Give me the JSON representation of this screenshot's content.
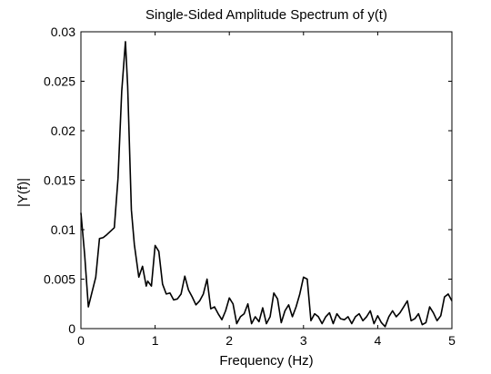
{
  "chart_data": {
    "type": "line",
    "title": "Single-Sided Amplitude Spectrum of y(t)",
    "xlabel": "Frequency (Hz)",
    "ylabel": "|Y(f)|",
    "xlim": [
      0,
      5
    ],
    "ylim": [
      0,
      0.03
    ],
    "x_ticks": [
      "0",
      "1",
      "2",
      "3",
      "4",
      "5"
    ],
    "y_ticks": [
      "0",
      "0.005",
      "0.01",
      "0.015",
      "0.02",
      "0.025",
      "0.03"
    ],
    "grid": false,
    "series_color": "#000000",
    "series": [
      {
        "x": [
          0,
          0.05,
          0.1,
          0.2,
          0.25,
          0.3,
          0.35,
          0.45,
          0.5,
          0.55,
          0.6,
          0.63,
          0.68,
          0.72,
          0.78,
          0.83,
          0.88,
          0.9,
          0.95,
          1.0,
          1.05,
          1.1,
          1.15,
          1.2,
          1.25,
          1.3,
          1.35,
          1.4,
          1.45,
          1.5,
          1.55,
          1.6,
          1.65,
          1.7,
          1.75,
          1.8,
          1.85,
          1.9,
          1.95,
          2.0,
          2.05,
          2.1,
          2.15,
          2.2,
          2.25,
          2.3,
          2.35,
          2.4,
          2.45,
          2.5,
          2.55,
          2.6,
          2.65,
          2.7,
          2.75,
          2.8,
          2.85,
          2.9,
          2.95,
          3.0,
          3.05,
          3.1,
          3.15,
          3.2,
          3.25,
          3.3,
          3.35,
          3.4,
          3.45,
          3.5,
          3.55,
          3.6,
          3.65,
          3.7,
          3.75,
          3.8,
          3.85,
          3.9,
          3.95,
          4.0,
          4.05,
          4.1,
          4.15,
          4.2,
          4.25,
          4.3,
          4.35,
          4.4,
          4.45,
          4.5,
          4.55,
          4.6,
          4.65,
          4.7,
          4.75,
          4.8,
          4.85,
          4.9,
          4.95,
          5.0
        ],
        "y": [
          0.0117,
          0.0075,
          0.0022,
          0.0052,
          0.0091,
          0.0092,
          0.0095,
          0.0102,
          0.0152,
          0.024,
          0.029,
          0.0245,
          0.012,
          0.0085,
          0.0052,
          0.0063,
          0.0043,
          0.0048,
          0.0043,
          0.0084,
          0.0078,
          0.0045,
          0.0035,
          0.0036,
          0.0029,
          0.003,
          0.0035,
          0.0053,
          0.0039,
          0.0032,
          0.0024,
          0.0028,
          0.0035,
          0.005,
          0.002,
          0.0022,
          0.0015,
          0.0009,
          0.0018,
          0.0031,
          0.0025,
          0.0005,
          0.0012,
          0.0015,
          0.0025,
          0.0005,
          0.0012,
          0.0007,
          0.0021,
          0.0005,
          0.0012,
          0.0036,
          0.003,
          0.0006,
          0.0018,
          0.0024,
          0.0012,
          0.0022,
          0.0035,
          0.0052,
          0.005,
          0.0008,
          0.0015,
          0.0012,
          0.0005,
          0.0012,
          0.0016,
          0.0005,
          0.0015,
          0.001,
          0.0009,
          0.0012,
          0.0005,
          0.0012,
          0.0015,
          0.0008,
          0.0012,
          0.0018,
          0.0005,
          0.0013,
          0.0006,
          0.0002,
          0.0012,
          0.0018,
          0.0012,
          0.0016,
          0.0022,
          0.0028,
          0.0008,
          0.001,
          0.0015,
          0.0004,
          0.0006,
          0.0022,
          0.0016,
          0.0008,
          0.0013,
          0.0032,
          0.0035,
          0.0028
        ]
      }
    ]
  }
}
